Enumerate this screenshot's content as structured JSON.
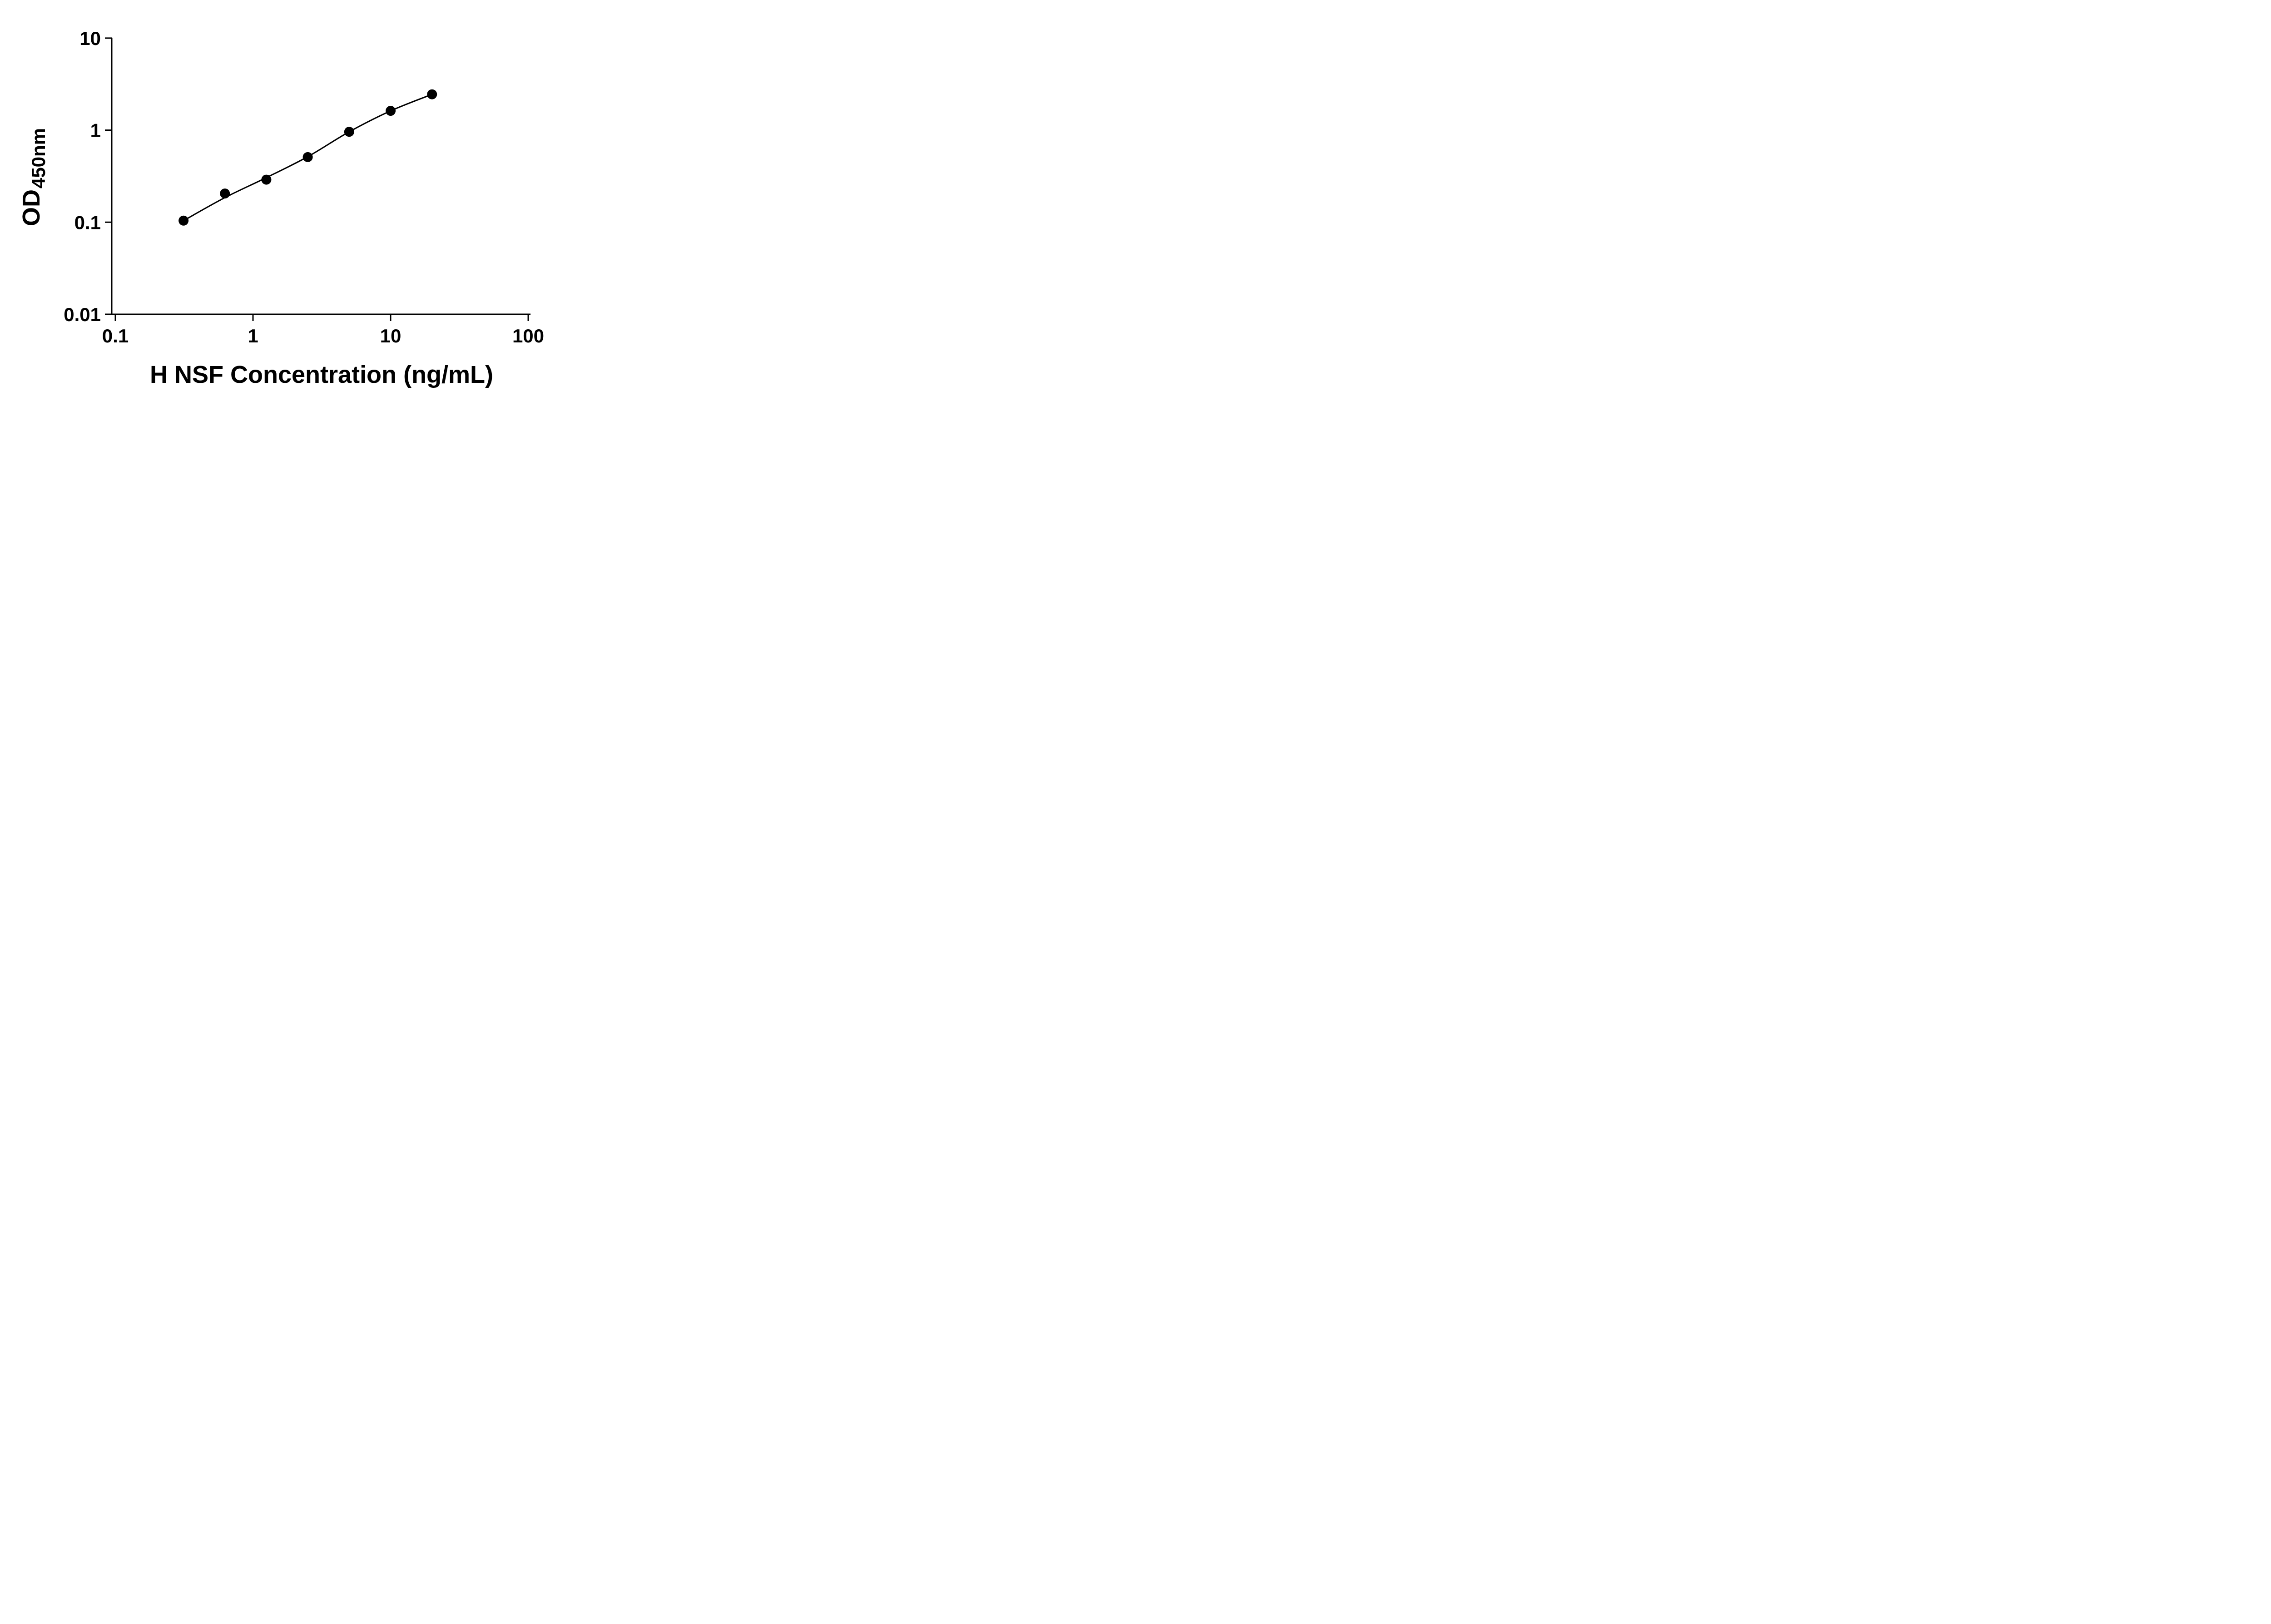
{
  "chart_data": {
    "type": "scatter",
    "title": "",
    "xlabel": "H NSF Concentration (ng/mL)",
    "ylabel_main": "OD",
    "ylabel_sub": "450nm",
    "x_scale": "log",
    "y_scale": "log",
    "xlim": [
      0.1,
      100
    ],
    "ylim": [
      0.01,
      10
    ],
    "x_ticks": [
      0.1,
      1,
      10,
      100
    ],
    "x_tick_labels": [
      "0.1",
      "1",
      "10",
      "100"
    ],
    "y_ticks": [
      0.01,
      0.1,
      1,
      10
    ],
    "y_tick_labels": [
      "0.01",
      "0.1",
      "1",
      "10"
    ],
    "grid": false,
    "legend": false,
    "marker_color": "#000000",
    "line_color": "#000000",
    "background_color": "#ffffff",
    "points": [
      {
        "x": 0.313,
        "y": 0.104
      },
      {
        "x": 0.625,
        "y": 0.205
      },
      {
        "x": 1.25,
        "y": 0.29
      },
      {
        "x": 2.5,
        "y": 0.51
      },
      {
        "x": 5,
        "y": 0.96
      },
      {
        "x": 10,
        "y": 1.62
      },
      {
        "x": 20,
        "y": 2.45
      }
    ],
    "fit_curve": {
      "points": [
        {
          "x": 0.313,
          "y": 0.104
        },
        {
          "x": 0.625,
          "y": 0.185
        },
        {
          "x": 1.25,
          "y": 0.305
        },
        {
          "x": 2.5,
          "y": 0.515
        },
        {
          "x": 5,
          "y": 0.96
        },
        {
          "x": 10,
          "y": 1.62
        },
        {
          "x": 20,
          "y": 2.45
        }
      ]
    }
  }
}
